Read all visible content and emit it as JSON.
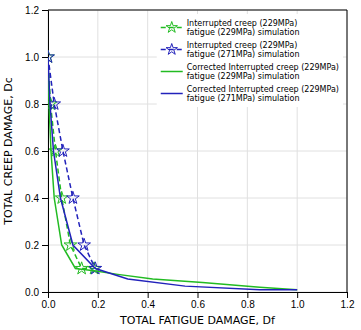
{
  "chart_data": {
    "type": "line",
    "xlabel": "TOTAL FATIGUE DAMAGE, Df",
    "ylabel": "TOTAL CREEP DAMAGE, Dc",
    "xlim": [
      0,
      1.2
    ],
    "ylim": [
      0,
      1.2
    ],
    "xticks": [
      {
        "value": 0,
        "label": "0.0"
      },
      0.2,
      0.4,
      0.6,
      0.8,
      {
        "value": 1,
        "label": "1.0"
      },
      1.2
    ],
    "yticks": [
      {
        "value": 0,
        "label": "0.0"
      },
      0.2,
      0.4,
      0.6,
      0.8,
      {
        "value": 1,
        "label": "1.0"
      },
      1.2
    ],
    "grid": true,
    "legend": "upper right",
    "series": [
      {
        "name": "Interrupted creep (229MPa)\nfatigue (229MPa) simulation",
        "color": "#22bb22",
        "line_style": "dashed",
        "marker": "star",
        "x": [
          0.0,
          0.01,
          0.03,
          0.055,
          0.09,
          0.135,
          0.185
        ],
        "values": [
          1.0,
          0.8,
          0.6,
          0.4,
          0.2,
          0.1,
          0.1
        ]
      },
      {
        "name": "Interrupted creep (229MPa)\nfatigue (271MPa) simulation",
        "color": "#2222bb",
        "line_style": "dashed",
        "marker": "star",
        "x": [
          0.0,
          0.025,
          0.06,
          0.1,
          0.145,
          0.19
        ],
        "values": [
          1.0,
          0.8,
          0.6,
          0.4,
          0.2,
          0.1
        ]
      },
      {
        "name": "Corrected Interrupted creep (229MPa)\nfatigue (229MPa) simulation",
        "color": "#22bb22",
        "line_style": "solid",
        "x": [
          0.0,
          0.004,
          0.012,
          0.025,
          0.055,
          0.11,
          0.185,
          0.28,
          0.42,
          0.62,
          0.85,
          1.0
        ],
        "values": [
          1.0,
          0.8,
          0.6,
          0.4,
          0.2,
          0.1,
          0.09,
          0.075,
          0.055,
          0.04,
          0.02,
          0.01
        ]
      },
      {
        "name": "Corrected Interrupted creep (229MPa)\nfatigue (271MPa) simulation",
        "color": "#2222bb",
        "line_style": "solid",
        "x": [
          0.0,
          0.008,
          0.022,
          0.05,
          0.1,
          0.19,
          0.32,
          0.55,
          0.85,
          1.0
        ],
        "values": [
          1.0,
          0.8,
          0.6,
          0.4,
          0.2,
          0.1,
          0.055,
          0.025,
          0.01,
          0.01
        ]
      }
    ]
  }
}
